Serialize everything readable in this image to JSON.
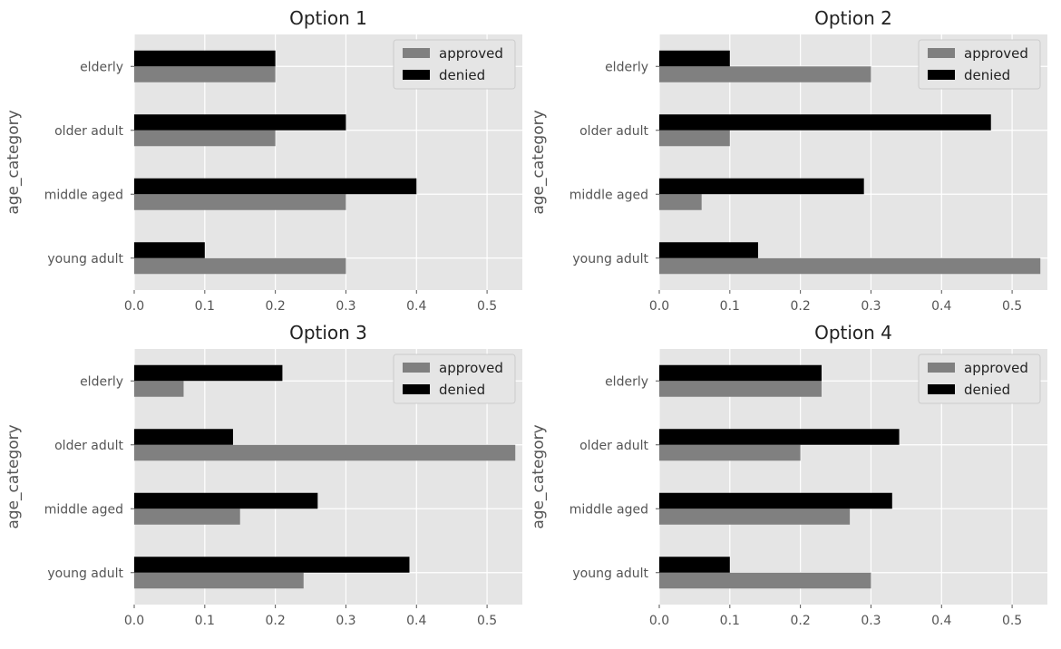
{
  "chart_data": [
    {
      "type": "bar",
      "orientation": "horizontal",
      "title": "Option 1",
      "ylabel": "age_category",
      "categories": [
        "young adult",
        "middle aged",
        "older adult",
        "elderly"
      ],
      "series": [
        {
          "name": "approved",
          "color": "#808080",
          "values": [
            0.3,
            0.3,
            0.2,
            0.2
          ]
        },
        {
          "name": "denied",
          "color": "#000000",
          "values": [
            0.1,
            0.4,
            0.3,
            0.2
          ]
        }
      ],
      "xlim": [
        0,
        0.55
      ],
      "xticks": [
        "0.0",
        "0.1",
        "0.2",
        "0.3",
        "0.4",
        "0.5"
      ],
      "grid": true,
      "legend": "top-right"
    },
    {
      "type": "bar",
      "orientation": "horizontal",
      "title": "Option 2",
      "ylabel": "age_category",
      "categories": [
        "young adult",
        "middle aged",
        "older adult",
        "elderly"
      ],
      "series": [
        {
          "name": "approved",
          "color": "#808080",
          "values": [
            0.54,
            0.06,
            0.1,
            0.3
          ]
        },
        {
          "name": "denied",
          "color": "#000000",
          "values": [
            0.14,
            0.29,
            0.47,
            0.1
          ]
        }
      ],
      "xlim": [
        0,
        0.55
      ],
      "xticks": [
        "0.0",
        "0.1",
        "0.2",
        "0.3",
        "0.4",
        "0.5"
      ],
      "grid": true,
      "legend": "top-right"
    },
    {
      "type": "bar",
      "orientation": "horizontal",
      "title": "Option 3",
      "ylabel": "age_category",
      "categories": [
        "young adult",
        "middle aged",
        "older adult",
        "elderly"
      ],
      "series": [
        {
          "name": "approved",
          "color": "#808080",
          "values": [
            0.24,
            0.15,
            0.54,
            0.07
          ]
        },
        {
          "name": "denied",
          "color": "#000000",
          "values": [
            0.39,
            0.26,
            0.14,
            0.21
          ]
        }
      ],
      "xlim": [
        0,
        0.55
      ],
      "xticks": [
        "0.0",
        "0.1",
        "0.2",
        "0.3",
        "0.4",
        "0.5"
      ],
      "grid": true,
      "legend": "top-right"
    },
    {
      "type": "bar",
      "orientation": "horizontal",
      "title": "Option 4",
      "ylabel": "age_category",
      "categories": [
        "young adult",
        "middle aged",
        "older adult",
        "elderly"
      ],
      "series": [
        {
          "name": "approved",
          "color": "#808080",
          "values": [
            0.3,
            0.27,
            0.2,
            0.23
          ]
        },
        {
          "name": "denied",
          "color": "#000000",
          "values": [
            0.1,
            0.33,
            0.34,
            0.23
          ]
        }
      ],
      "xlim": [
        0,
        0.55
      ],
      "xticks": [
        "0.0",
        "0.1",
        "0.2",
        "0.3",
        "0.4",
        "0.5"
      ],
      "grid": true,
      "legend": "top-right"
    }
  ]
}
